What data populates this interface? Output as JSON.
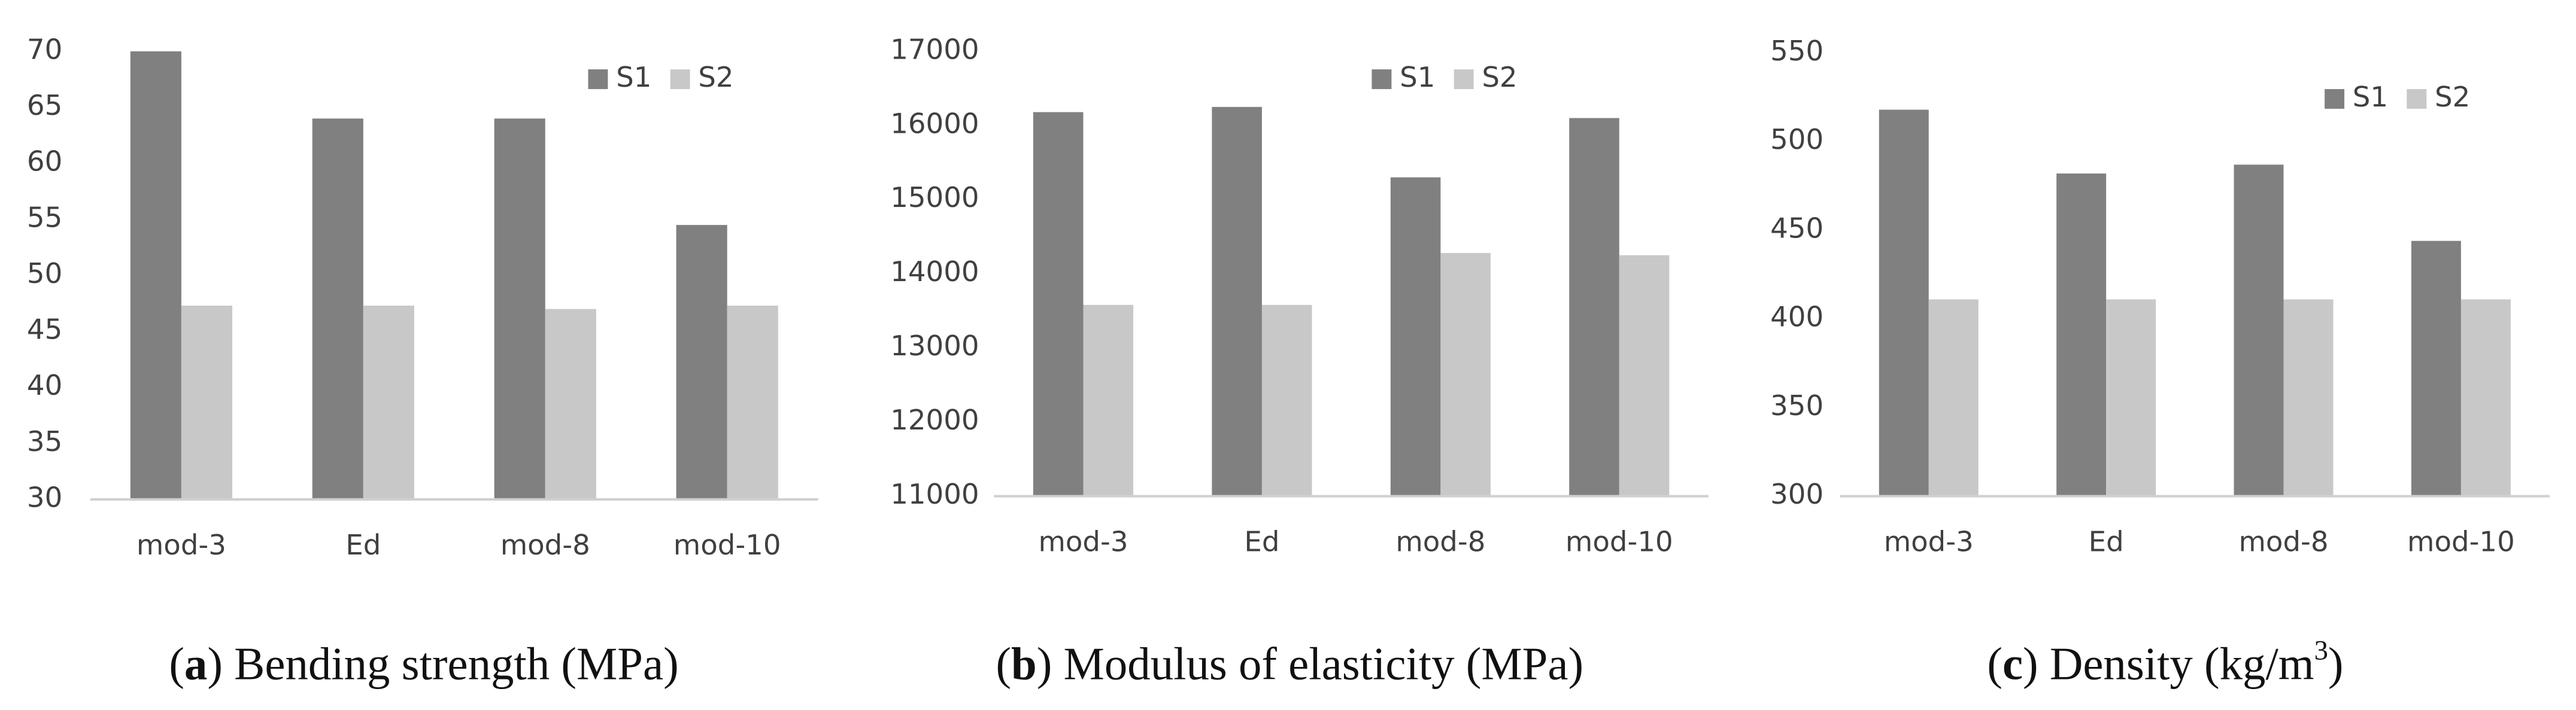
{
  "chart_data": [
    {
      "type": "bar",
      "categories": [
        "mod-3",
        "Ed",
        "mod-8",
        "mod-10"
      ],
      "series": [
        {
          "name": "S1",
          "color": "#808080",
          "values": [
            70,
            64,
            64,
            54.5
          ]
        },
        {
          "name": "S2",
          "color": "#c8c8c8",
          "values": [
            47.3,
            47.3,
            47,
            47.3
          ]
        }
      ],
      "ylim": [
        30,
        70
      ],
      "yticks": [
        30,
        35,
        40,
        45,
        50,
        55,
        60,
        65,
        70
      ],
      "grid": false,
      "legend": "top-right",
      "caption": [
        {
          "text": "("
        },
        {
          "text": "a",
          "bold": true
        },
        {
          "text": ") Bending strength (MPa)"
        }
      ]
    },
    {
      "type": "bar",
      "categories": [
        "mod-3",
        "Ed",
        "mod-8",
        "mod-10"
      ],
      "series": [
        {
          "name": "S1",
          "color": "#808080",
          "values": [
            16180,
            16250,
            15300,
            16100
          ]
        },
        {
          "name": "S2",
          "color": "#c8c8c8",
          "values": [
            13580,
            13580,
            14280,
            14250
          ]
        }
      ],
      "ylim": [
        11000,
        17000
      ],
      "yticks": [
        11000,
        12000,
        13000,
        14000,
        15000,
        16000,
        17000
      ],
      "grid": false,
      "legend": "top-right",
      "caption": [
        {
          "text": "("
        },
        {
          "text": "b",
          "bold": true
        },
        {
          "text": ") Modulus of elasticity (MPa)"
        }
      ]
    },
    {
      "type": "bar",
      "categories": [
        "mod-3",
        "Ed",
        "mod-8",
        "mod-10"
      ],
      "series": [
        {
          "name": "S1",
          "color": "#808080",
          "values": [
            518,
            482,
            487,
            444
          ]
        },
        {
          "name": "S2",
          "color": "#c8c8c8",
          "values": [
            411,
            411,
            411,
            411
          ]
        }
      ],
      "ylim": [
        300,
        550
      ],
      "yticks": [
        300,
        350,
        400,
        450,
        500,
        550
      ],
      "grid": false,
      "legend": "top-right",
      "caption": [
        {
          "text": "("
        },
        {
          "text": "c",
          "bold": true
        },
        {
          "text": ") Density (kg/m"
        },
        {
          "text": "3",
          "sup": true
        },
        {
          "text": ")"
        }
      ]
    }
  ]
}
